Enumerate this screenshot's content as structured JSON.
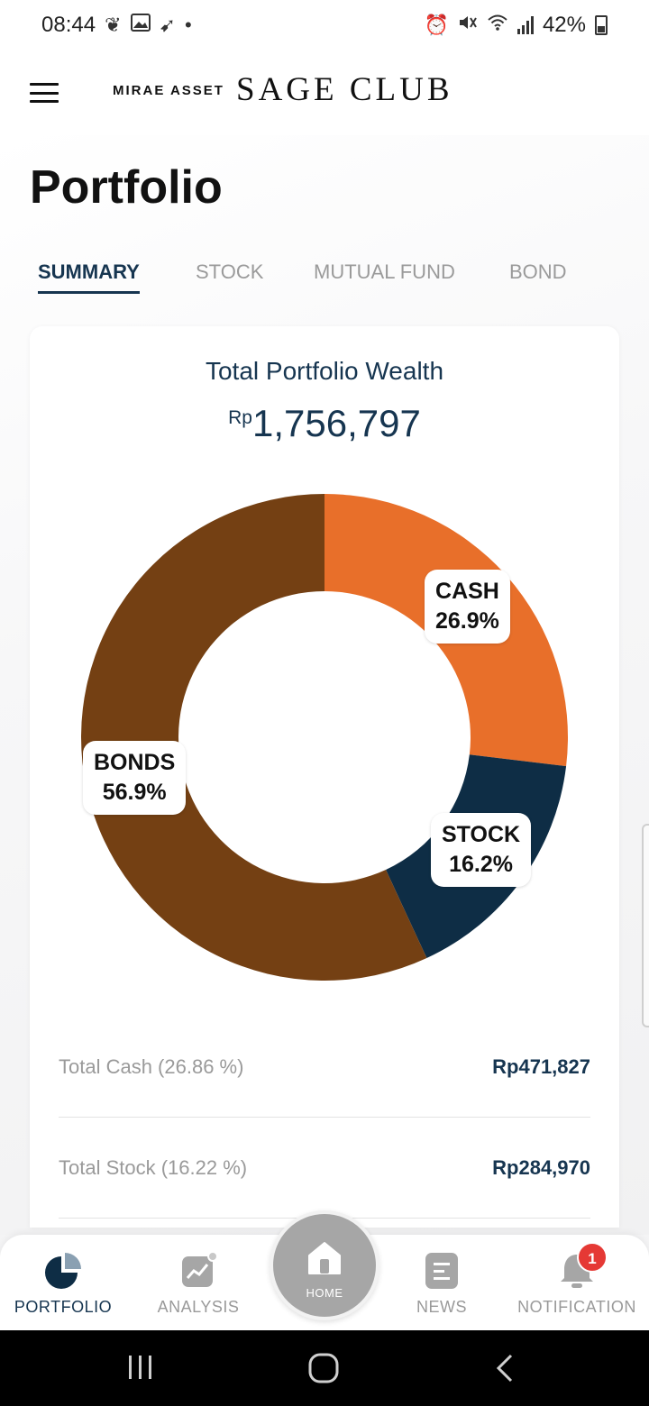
{
  "status_bar": {
    "time": "08:44",
    "battery": "42%",
    "left_icons": [
      "heart-icon",
      "gallery-icon",
      "bird-icon",
      "dot-icon"
    ],
    "right_icons": [
      "alarm-icon",
      "mute-icon",
      "wifi-icon",
      "signal-icon",
      "battery-icon"
    ]
  },
  "header": {
    "brand_small": "MIRAE ASSET",
    "brand_large": "SAGE CLUB"
  },
  "page": {
    "title": "Portfolio"
  },
  "tabs": [
    {
      "label": "SUMMARY",
      "active": true
    },
    {
      "label": "STOCK",
      "active": false
    },
    {
      "label": "MUTUAL FUND",
      "active": false
    },
    {
      "label": "BOND",
      "active": false
    }
  ],
  "wealth": {
    "label": "Total Portfolio Wealth",
    "currency": "Rp",
    "amount": "1,756,797"
  },
  "chart_data": {
    "type": "pie",
    "donut": true,
    "categories": [
      "CASH",
      "STOCK",
      "BONDS"
    ],
    "values": [
      26.9,
      16.2,
      56.9
    ],
    "value_labels": [
      "26.9%",
      "16.2%",
      "56.9%"
    ],
    "colors": [
      "#e86f2a",
      "#0e2d45",
      "#744013"
    ],
    "start_angle_deg": 0,
    "direction": "clockwise"
  },
  "summary_rows": [
    {
      "label": "Total Cash (26.86 %)",
      "value": "Rp471,827"
    },
    {
      "label": "Total Stock (16.22 %)",
      "value": "Rp284,970"
    }
  ],
  "bottom_nav": {
    "items": [
      {
        "label": "PORTFOLIO",
        "icon": "pie-chart-icon",
        "active": true
      },
      {
        "label": "ANALYSIS",
        "icon": "trend-chart-icon",
        "active": false
      },
      {
        "label": "HOME",
        "icon": "home-icon",
        "active": false
      },
      {
        "label": "NEWS",
        "icon": "news-icon",
        "active": false
      },
      {
        "label": "NOTIFICATION",
        "icon": "bell-icon",
        "active": false,
        "badge": "1"
      }
    ]
  },
  "system_nav": {
    "icons": [
      "recent-apps-icon",
      "home-circle-icon",
      "back-icon"
    ]
  },
  "colors": {
    "accent": "#163550",
    "muted": "#9a9a9a",
    "badge": "#e53935"
  }
}
